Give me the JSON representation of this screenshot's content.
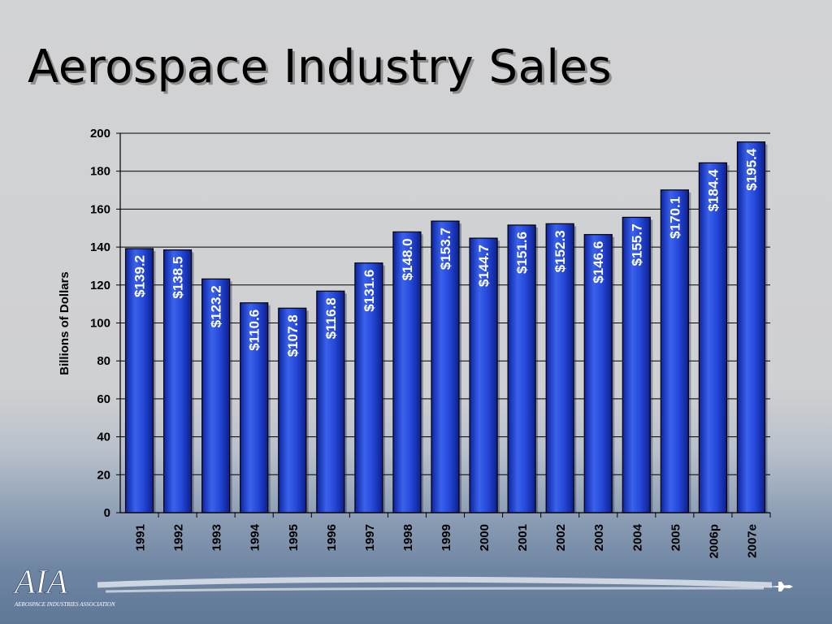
{
  "slide": {
    "title": "Aerospace Industry Sales"
  },
  "chart_data": {
    "type": "bar",
    "categories": [
      "1991",
      "1992",
      "1993",
      "1994",
      "1995",
      "1996",
      "1997",
      "1998",
      "1999",
      "2000",
      "2001",
      "2002",
      "2003",
      "2004",
      "2005",
      "2006p",
      "2007e"
    ],
    "values": [
      139.2,
      138.5,
      123.2,
      110.6,
      107.8,
      116.8,
      131.6,
      148.0,
      153.7,
      144.7,
      151.6,
      152.3,
      146.6,
      155.7,
      170.1,
      184.4,
      195.4
    ],
    "value_labels": [
      "$139.2",
      "$138.5",
      "$123.2",
      "$110.6",
      "$107.8",
      "$116.8",
      "$131.6",
      "$148.0",
      "$153.7",
      "$144.7",
      "$151.6",
      "$152.3",
      "$146.6",
      "$155.7",
      "$170.1",
      "$184.4",
      "$195.4"
    ],
    "title": "",
    "xlabel": "",
    "ylabel": "Billions of Dollars",
    "ylim": [
      0,
      200
    ],
    "yticks": [
      0,
      20,
      40,
      60,
      80,
      100,
      120,
      140,
      160,
      180,
      200
    ],
    "grid": true,
    "bar_color": "#1c3fd8",
    "bar_highlight": "#6f8df5"
  },
  "logo": {
    "text": "AIA",
    "subtitle": "AEROSPACE INDUSTRIES ASSOCIATION"
  }
}
